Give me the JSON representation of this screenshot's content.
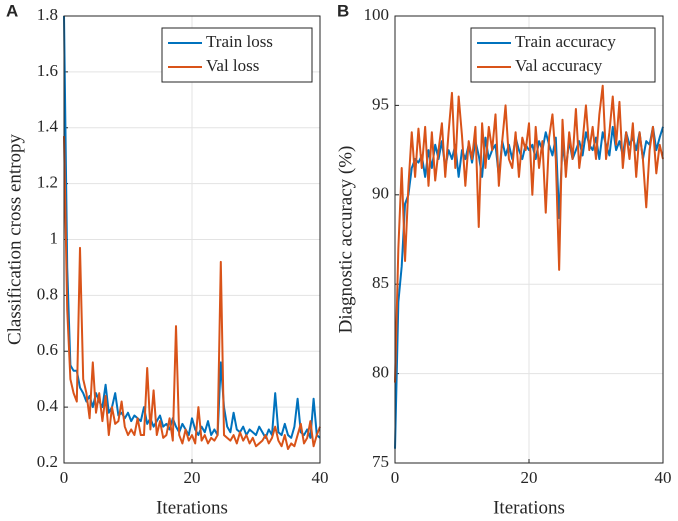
{
  "chart_data": [
    {
      "type": "line",
      "panel_label": "A",
      "xlabel": "Iterations",
      "ylabel": "Classification cross entropy",
      "x": [
        0,
        0.5,
        1,
        1.5,
        2,
        2.5,
        3,
        3.5,
        4,
        4.5,
        5,
        5.5,
        6,
        6.5,
        7,
        7.5,
        8,
        8.5,
        9,
        9.5,
        10,
        10.5,
        11,
        11.5,
        12,
        12.5,
        13,
        13.5,
        14,
        14.5,
        15,
        15.5,
        16,
        16.5,
        17,
        17.5,
        18,
        18.5,
        19,
        19.5,
        20,
        20.5,
        21,
        21.5,
        22,
        22.5,
        23,
        23.5,
        24,
        24.5,
        25,
        25.5,
        26,
        26.5,
        27,
        27.5,
        28,
        28.5,
        29,
        29.5,
        30,
        30.5,
        31,
        31.5,
        32,
        32.5,
        33,
        33.5,
        34,
        34.5,
        35,
        35.5,
        36,
        36.5,
        37,
        37.5,
        38,
        38.5,
        39,
        39.5,
        40
      ],
      "series": [
        {
          "name": "Train loss",
          "color": "#0072BD",
          "values": [
            1.8,
            0.9,
            0.55,
            0.53,
            0.53,
            0.47,
            0.45,
            0.42,
            0.44,
            0.4,
            0.45,
            0.42,
            0.4,
            0.48,
            0.38,
            0.4,
            0.45,
            0.37,
            0.38,
            0.36,
            0.38,
            0.35,
            0.37,
            0.36,
            0.35,
            0.4,
            0.34,
            0.36,
            0.33,
            0.35,
            0.37,
            0.33,
            0.34,
            0.32,
            0.36,
            0.33,
            0.31,
            0.34,
            0.32,
            0.3,
            0.36,
            0.32,
            0.3,
            0.33,
            0.31,
            0.35,
            0.3,
            0.32,
            0.3,
            0.56,
            0.4,
            0.33,
            0.31,
            0.38,
            0.32,
            0.31,
            0.33,
            0.3,
            0.32,
            0.31,
            0.3,
            0.33,
            0.31,
            0.29,
            0.32,
            0.3,
            0.45,
            0.31,
            0.3,
            0.34,
            0.3,
            0.29,
            0.33,
            0.43,
            0.31,
            0.3,
            0.32,
            0.29,
            0.43,
            0.3,
            0.29
          ]
        },
        {
          "name": "Val loss",
          "color": "#D95319",
          "values": [
            1.37,
            0.75,
            0.5,
            0.45,
            0.42,
            0.97,
            0.5,
            0.45,
            0.36,
            0.56,
            0.38,
            0.45,
            0.35,
            0.44,
            0.3,
            0.4,
            0.34,
            0.35,
            0.42,
            0.33,
            0.3,
            0.32,
            0.3,
            0.36,
            0.3,
            0.3,
            0.54,
            0.32,
            0.46,
            0.3,
            0.35,
            0.29,
            0.3,
            0.36,
            0.28,
            0.69,
            0.3,
            0.27,
            0.32,
            0.28,
            0.3,
            0.27,
            0.4,
            0.28,
            0.3,
            0.27,
            0.29,
            0.28,
            0.3,
            0.92,
            0.3,
            0.29,
            0.28,
            0.3,
            0.27,
            0.31,
            0.28,
            0.3,
            0.27,
            0.29,
            0.26,
            0.27,
            0.28,
            0.3,
            0.27,
            0.29,
            0.33,
            0.28,
            0.26,
            0.3,
            0.25,
            0.27,
            0.26,
            0.3,
            0.34,
            0.27,
            0.29,
            0.35,
            0.26,
            0.3,
            0.33
          ]
        }
      ],
      "xlim": [
        0,
        40
      ],
      "xticks": [
        0,
        20,
        40
      ],
      "ylim": [
        0.2,
        1.8
      ],
      "yticks": [
        0.2,
        0.4,
        0.6,
        0.8,
        1,
        1.2,
        1.4,
        1.6,
        1.8
      ],
      "grid": true,
      "legend": "upper right"
    },
    {
      "type": "line",
      "panel_label": "B",
      "xlabel": "Iterations",
      "ylabel": "Diagnostic accuracy (%)",
      "x": [
        0,
        0.5,
        1,
        1.5,
        2,
        2.5,
        3,
        3.5,
        4,
        4.5,
        5,
        5.5,
        6,
        6.5,
        7,
        7.5,
        8,
        8.5,
        9,
        9.5,
        10,
        10.5,
        11,
        11.5,
        12,
        12.5,
        13,
        13.5,
        14,
        14.5,
        15,
        15.5,
        16,
        16.5,
        17,
        17.5,
        18,
        18.5,
        19,
        19.5,
        20,
        20.5,
        21,
        21.5,
        22,
        22.5,
        23,
        23.5,
        24,
        24.5,
        25,
        25.5,
        26,
        26.5,
        27,
        27.5,
        28,
        28.5,
        29,
        29.5,
        30,
        30.5,
        31,
        31.5,
        32,
        32.5,
        33,
        33.5,
        34,
        34.5,
        35,
        35.5,
        36,
        36.5,
        37,
        37.5,
        38,
        38.5,
        39,
        39.5,
        40
      ],
      "series": [
        {
          "name": "Train accuracy",
          "color": "#0072BD",
          "values": [
            75.8,
            84,
            86,
            89.5,
            90,
            91.5,
            92,
            91.8,
            92.2,
            91,
            92.5,
            91.5,
            92.8,
            92,
            93,
            91.5,
            92.5,
            92,
            92.8,
            91,
            92.5,
            92,
            92.8,
            91.8,
            93,
            92.2,
            91,
            93.2,
            92,
            92.5,
            92.8,
            91,
            93,
            92.2,
            92.8,
            92,
            93.2,
            92.5,
            92,
            92.8,
            92.5,
            92.8,
            92,
            93,
            92.5,
            93.5,
            92.8,
            92.2,
            93.2,
            88.7,
            92.8,
            91.5,
            93,
            92,
            92.5,
            93,
            92.2,
            93.5,
            92.8,
            92.5,
            93.2,
            92,
            93.5,
            92.8,
            92.2,
            93.8,
            92.5,
            93,
            92.2,
            93.5,
            92.8,
            93.2,
            92.5,
            93.5,
            92,
            93,
            92.8,
            93.8,
            92.5,
            93.2,
            93.8
          ]
        },
        {
          "name": "Val accuracy",
          "color": "#D95319",
          "values": [
            79.5,
            87,
            91.5,
            86.3,
            90.5,
            93.5,
            91,
            93.7,
            91.5,
            93.8,
            90.5,
            93.5,
            90.8,
            92.5,
            94,
            91,
            93.5,
            95.7,
            91.5,
            95.5,
            93.3,
            90.5,
            93,
            92,
            93.8,
            88.2,
            94,
            91.5,
            93.8,
            92.5,
            94.5,
            90.5,
            93,
            95,
            92,
            91.5,
            93.5,
            91,
            93.2,
            92.5,
            94,
            90,
            93.8,
            91.5,
            93,
            89,
            93.2,
            94.5,
            92,
            85.8,
            94.2,
            91,
            93.5,
            92,
            94.8,
            91.5,
            93,
            95,
            92.5,
            93.8,
            92,
            94.5,
            96.1,
            92,
            93.5,
            95.5,
            92.8,
            95.2,
            91.5,
            93.5,
            92,
            94,
            91,
            93.5,
            92,
            89.3,
            92.5,
            93.8,
            91.2,
            92.8,
            92
          ]
        }
      ],
      "xlim": [
        0,
        40
      ],
      "xticks": [
        0,
        20,
        40
      ],
      "ylim": [
        75,
        100
      ],
      "yticks": [
        75,
        80,
        85,
        90,
        95,
        100
      ],
      "grid": true,
      "legend": "upper right"
    }
  ]
}
